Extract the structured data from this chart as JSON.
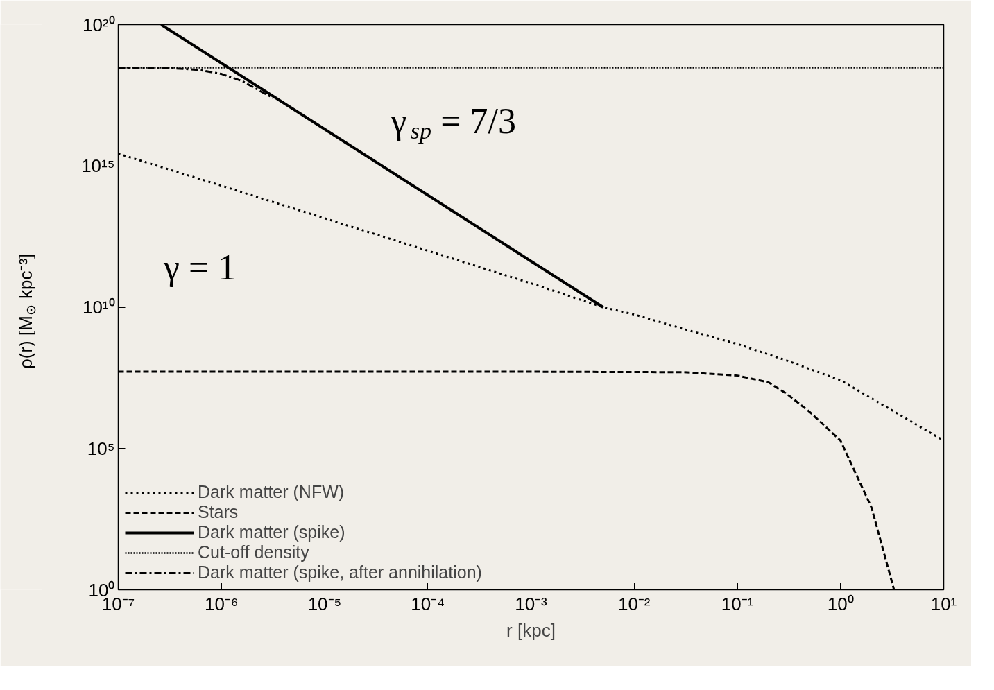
{
  "chart_data": {
    "type": "line",
    "xlabel": "r [kpc]",
    "ylabel": "ρ(r) [M$_{⊙}$ kpc⁻³]",
    "log": "xy",
    "grid": false,
    "legend": "bottom left",
    "xlim": [
      1e-07,
      10
    ],
    "ylim": [
      1,
      1e+20
    ],
    "xticks": [
      {
        "value": 1e-07,
        "label": "10⁻⁷"
      },
      {
        "value": 1e-06,
        "label": "10⁻⁶"
      },
      {
        "value": 1e-05,
        "label": "10⁻⁵"
      },
      {
        "value": 0.0001,
        "label": "10⁻⁴"
      },
      {
        "value": 0.001,
        "label": "10⁻³"
      },
      {
        "value": 0.01,
        "label": "10⁻²"
      },
      {
        "value": 0.1,
        "label": "10⁻¹"
      },
      {
        "value": 1,
        "label": "10⁰"
      },
      {
        "value": 10,
        "label": "10¹"
      }
    ],
    "yticks": [
      {
        "value": 1,
        "label": "10⁰"
      },
      {
        "value": 100000.0,
        "label": "10⁵"
      },
      {
        "value": 10000000000.0,
        "label": "10¹⁰"
      },
      {
        "value": 1000000000000000.0,
        "label": "10¹⁵"
      },
      {
        "value": 1e+20,
        "label": "10²⁰"
      }
    ],
    "series": [
      {
        "name": "Dark matter (NFW)",
        "color": "#000000",
        "line_style": "dotted",
        "x": [
          1e-07,
          1e-06,
          1e-05,
          0.0001,
          0.001,
          0.005,
          0.01,
          0.03,
          0.1,
          0.3,
          1,
          3,
          10
        ],
        "values": [
          2700000000000000.0,
          200000000000000.0,
          14000000000000.0,
          1000000000000.0,
          70000000000.0,
          10000000000.0,
          5500000000.0,
          1700000000.0,
          500000000.0,
          130000000.0,
          26000000.0,
          2500000.0,
          190000.0
        ]
      },
      {
        "name": "Stars",
        "color": "#000000",
        "line_style": "dashed",
        "x": [
          1e-07,
          0.001,
          0.03,
          0.1,
          0.2,
          0.3,
          0.5,
          1,
          2,
          3.3
        ],
        "values": [
          52000000.0,
          52000000.0,
          50000000.0,
          38000000.0,
          22000000.0,
          8700000.0,
          2000000.0,
          190000.0,
          800,
          1
        ]
      },
      {
        "name": "Dark matter (spike)",
        "color": "#000000",
        "line_style": "solid",
        "x": [
          2.6e-07,
          0.005
        ],
        "values": [
          1e+20,
          10000000000.0
        ]
      },
      {
        "name": "Cut-off density",
        "color": "#000000",
        "line_style": "fine_dotted",
        "x": [
          1e-07,
          10
        ],
        "values": [
          3e+18,
          3e+18
        ]
      },
      {
        "name": "Dark matter (spike, after annihilation)",
        "color": "#000000",
        "line_style": "dashdot",
        "x": [
          1e-07,
          3e-07,
          6e-07,
          1e-06,
          1.6e-06,
          2.5e-06,
          3.2e-06
        ],
        "values": [
          3e+18,
          2.95e+18,
          2.5e+18,
          1.8e+18,
          1e+18,
          4e+17,
          2.5e+17
        ]
      }
    ],
    "annotations": [
      "γ$_{sp}$ = 7/3",
      "γ = 1"
    ]
  }
}
